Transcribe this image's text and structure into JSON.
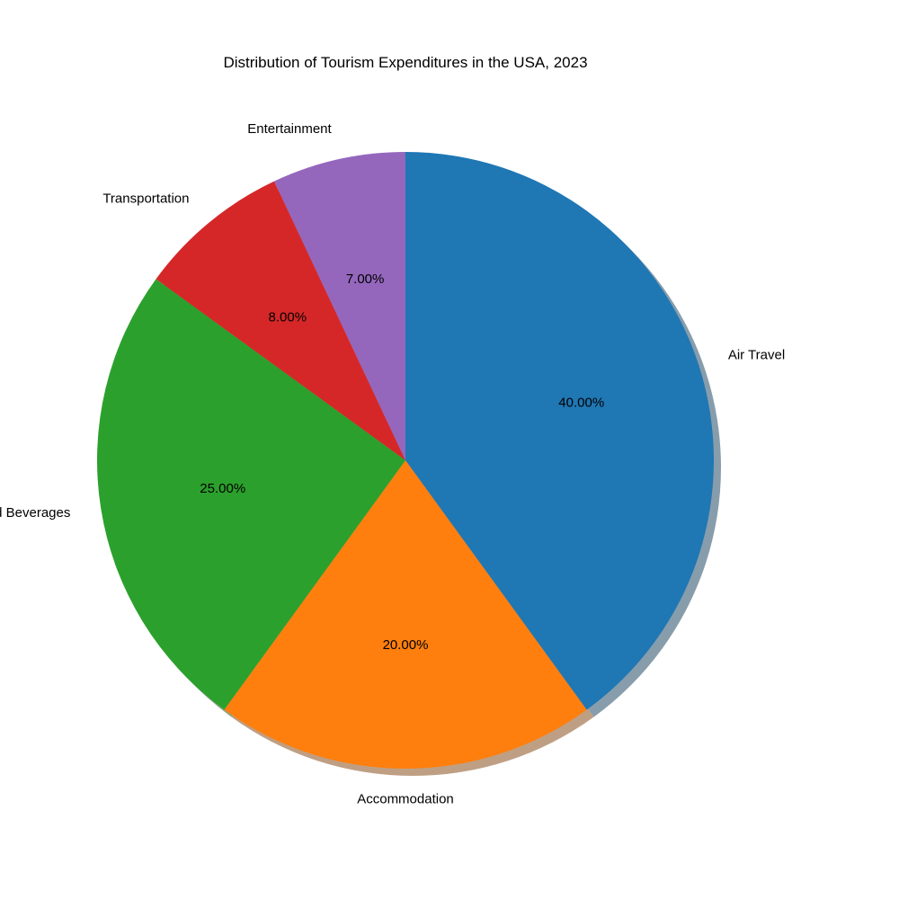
{
  "chart_data": {
    "type": "pie",
    "title": "Distribution of Tourism Expenditures in the USA, 2023",
    "start_angle_deg": 90,
    "direction": "clockwise",
    "shadow": true,
    "categories": [
      "Air Travel",
      "Accommodation",
      "Food and Beverages",
      "Transportation",
      "Entertainment"
    ],
    "values": [
      40,
      20,
      25,
      8,
      7
    ],
    "value_labels": [
      "40.00%",
      "20.00%",
      "25.00%",
      "8.00%",
      "7.00%"
    ],
    "colors": [
      "#1f77b4",
      "#ff7f0e",
      "#2ca02c",
      "#d62728",
      "#9467bd"
    ]
  }
}
